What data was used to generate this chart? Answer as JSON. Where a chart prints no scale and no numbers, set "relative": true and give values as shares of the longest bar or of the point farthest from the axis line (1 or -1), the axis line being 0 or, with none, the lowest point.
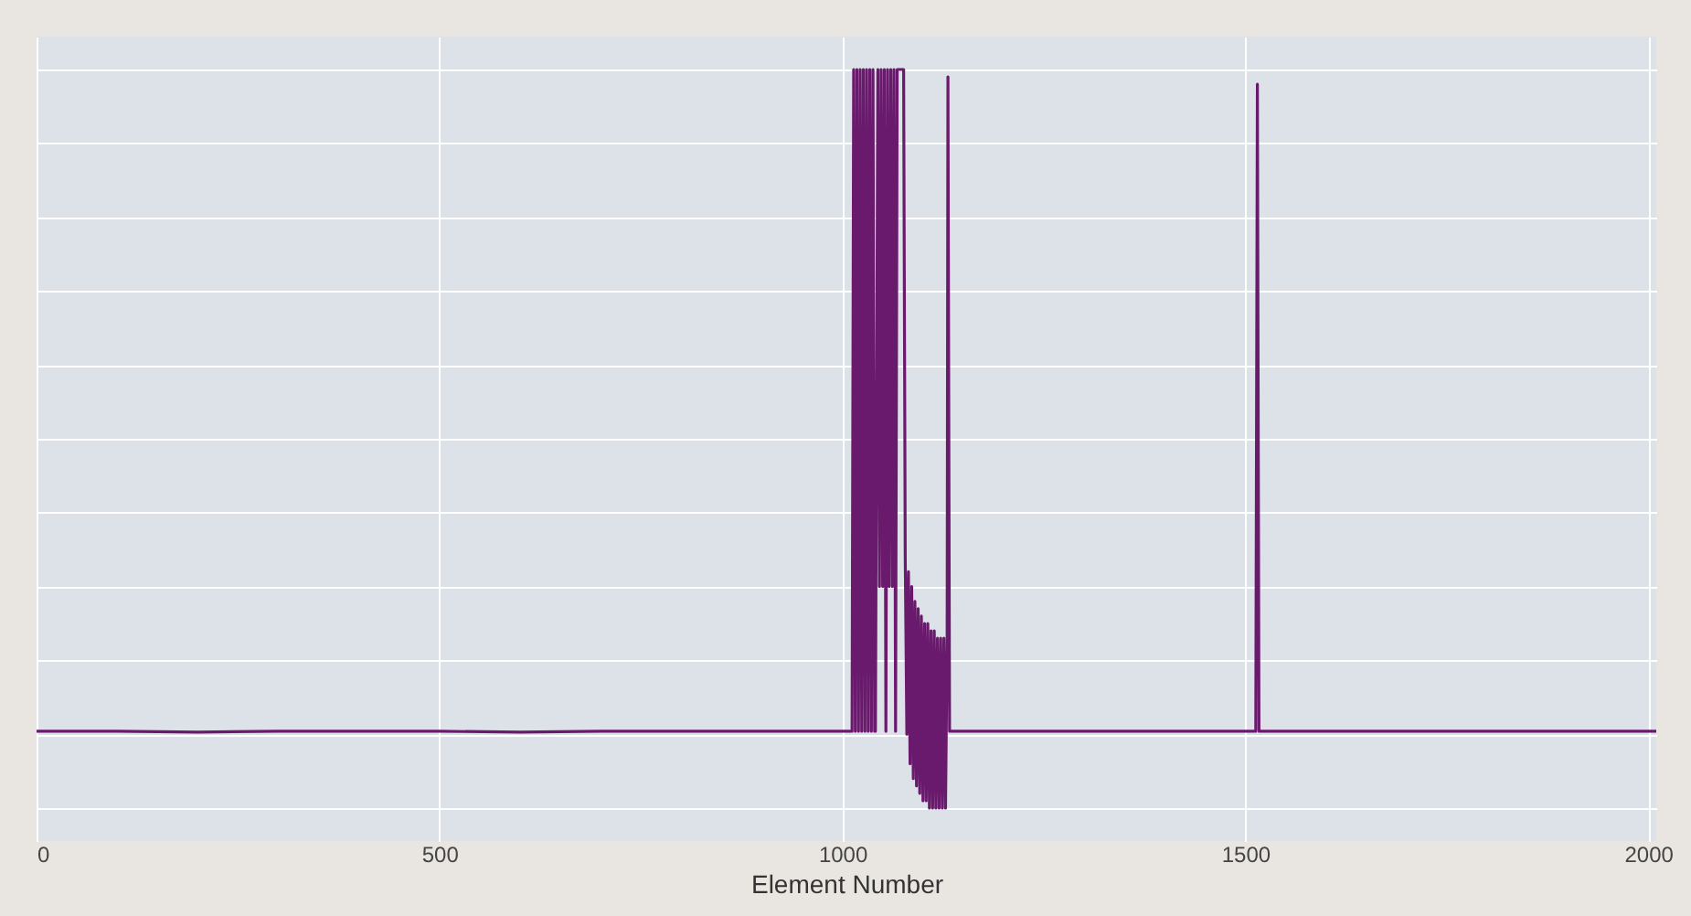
{
  "chart_data": {
    "type": "line",
    "xlabel": "Element Number",
    "relative": true,
    "xlim": [
      0,
      2010
    ],
    "xticks": [
      0,
      500,
      1000,
      1500,
      2000
    ],
    "grid": true,
    "marker": "none",
    "line_style": "solid",
    "x": [
      0,
      100,
      200,
      300,
      400,
      500,
      600,
      700,
      800,
      900,
      1000,
      1012,
      1014,
      1016,
      1018,
      1020,
      1022,
      1024,
      1026,
      1028,
      1030,
      1032,
      1034,
      1036,
      1038,
      1040,
      1041,
      1044,
      1046,
      1048,
      1050,
      1052,
      1054,
      1056,
      1058,
      1060,
      1062,
      1064,
      1066,
      1068,
      1070,
      1072,
      1074,
      1076,
      1078,
      1080,
      1082,
      1084,
      1086,
      1088,
      1090,
      1092,
      1094,
      1096,
      1098,
      1100,
      1102,
      1104,
      1106,
      1108,
      1110,
      1112,
      1114,
      1116,
      1118,
      1120,
      1122,
      1124,
      1126,
      1128,
      1130,
      1131,
      1133,
      1200,
      1300,
      1400,
      1510,
      1513,
      1515,
      1517,
      1520,
      1600,
      1700,
      1800,
      1900,
      2010
    ],
    "series": [
      {
        "color": "#6a1a6c",
        "values": [
          0.104,
          0.104,
          0.103,
          0.104,
          0.104,
          0.104,
          0.103,
          0.104,
          0.104,
          0.104,
          0.104,
          0.104,
          1.0,
          0.104,
          1.0,
          0.104,
          1.0,
          0.104,
          1.0,
          0.104,
          1.0,
          0.104,
          1.0,
          0.104,
          1.0,
          0.104,
          0.104,
          1.0,
          0.3,
          1.0,
          0.3,
          1.0,
          0.104,
          1.0,
          0.3,
          1.0,
          0.3,
          1.0,
          0.104,
          1.0,
          1.0,
          1.0,
          1.0,
          1.0,
          0.34,
          0.1,
          0.32,
          0.06,
          0.3,
          0.04,
          0.28,
          0.03,
          0.27,
          0.02,
          0.26,
          0.01,
          0.25,
          0.01,
          0.25,
          0.0,
          0.24,
          0.0,
          0.24,
          0.0,
          0.23,
          0.0,
          0.23,
          0.0,
          0.23,
          0.0,
          0.23,
          0.99,
          0.104,
          0.104,
          0.104,
          0.104,
          0.104,
          0.104,
          0.98,
          0.104,
          0.104,
          0.104,
          0.104,
          0.104,
          0.104,
          0.104
        ]
      }
    ]
  }
}
